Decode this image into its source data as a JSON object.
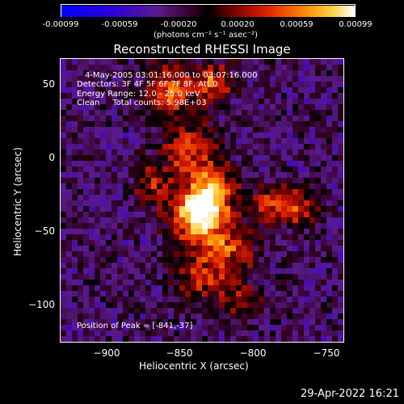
{
  "colorbar": {
    "ticks": [
      "-0.00099",
      "-0.00059",
      "-0.00020",
      "0.00020",
      "0.00059",
      "0.00099"
    ],
    "units": "(photons cm⁻² s⁻¹ asec⁻²)",
    "range": [
      -0.00099,
      0.00099
    ]
  },
  "chart_data": {
    "type": "heatmap",
    "title": "Reconstructed RHESSI Image",
    "xlabel": "Heliocentric X (arcsec)",
    "ylabel": "Heliocentric Y (arcsec)",
    "xlim": [
      -934,
      -740
    ],
    "ylim": [
      -123,
      71
    ],
    "x_ticks": [
      "−900",
      "−850",
      "−800",
      "−750"
    ],
    "y_ticks": [
      "50",
      "0",
      "−50",
      "−100"
    ],
    "annotations": {
      "time_range": "4-May-2005 03:01:16.000 to 03:07:16.000",
      "detectors": "Detectors: 3F 4F 5F 6F 7F 8F, Att 0",
      "energy": "Energy Range: 12.0 - 25.0 keV",
      "clean": "Clean     Total counts: 5.98E+03",
      "peak": "Position of Peak = [-841,-37]"
    },
    "peak_position": [
      -841,
      -37
    ]
  },
  "footer": {
    "date": "29-Apr-2022 16:21"
  }
}
